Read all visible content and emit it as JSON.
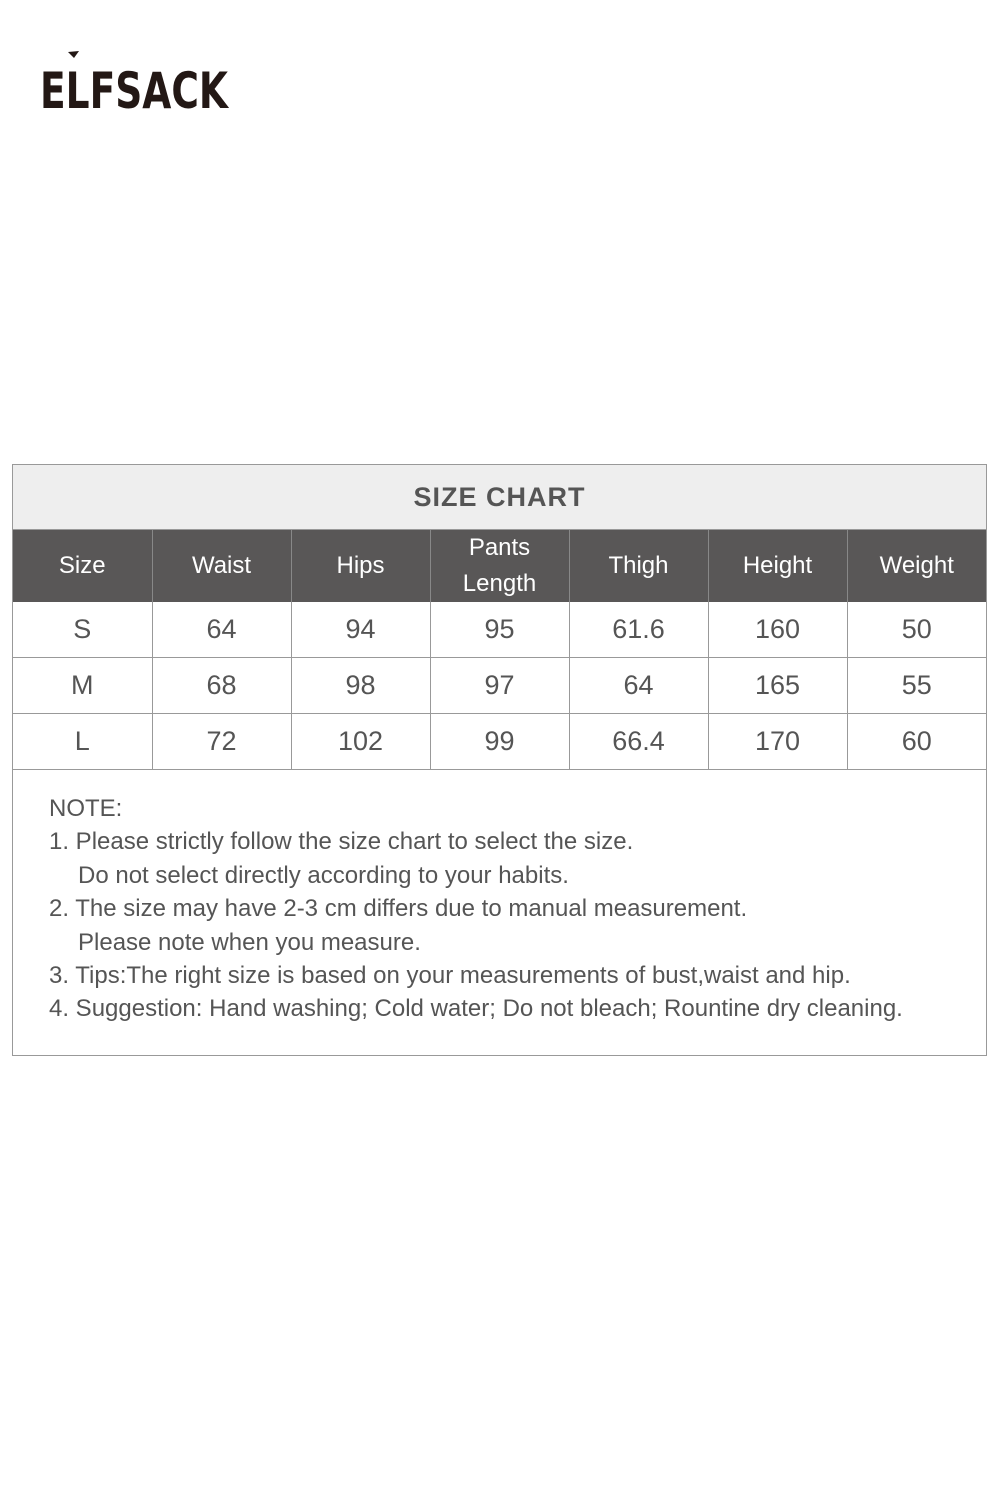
{
  "logo": {
    "text": "ELFSACK"
  },
  "size_chart": {
    "title": "SIZE CHART",
    "headers": [
      "Size",
      "Waist",
      "Hips",
      "Pants Length",
      "Thigh",
      "Height",
      "Weight"
    ],
    "rows": [
      [
        "S",
        "64",
        "94",
        "95",
        "61.6",
        "160",
        "50"
      ],
      [
        "M",
        "68",
        "98",
        "97",
        "64",
        "165",
        "55"
      ],
      [
        "L",
        "72",
        "102",
        "99",
        "66.4",
        "170",
        "60"
      ]
    ]
  },
  "notes": {
    "heading": "NOTE:",
    "lines": [
      "1. Please strictly follow the size chart to select the size.",
      "Do not select directly according to your habits.",
      "2. The size may have 2-3 cm differs due to manual measurement.",
      "Please note when you measure.",
      "3. Tips:The right size is based on your measurements of bust,waist and hip.",
      "4. Suggestion: Hand washing; Cold water; Do not bleach; Rountine dry cleaning."
    ]
  },
  "colors": {
    "header_bg": "#595757",
    "title_bg": "#eeeeee",
    "text": "#555555"
  }
}
